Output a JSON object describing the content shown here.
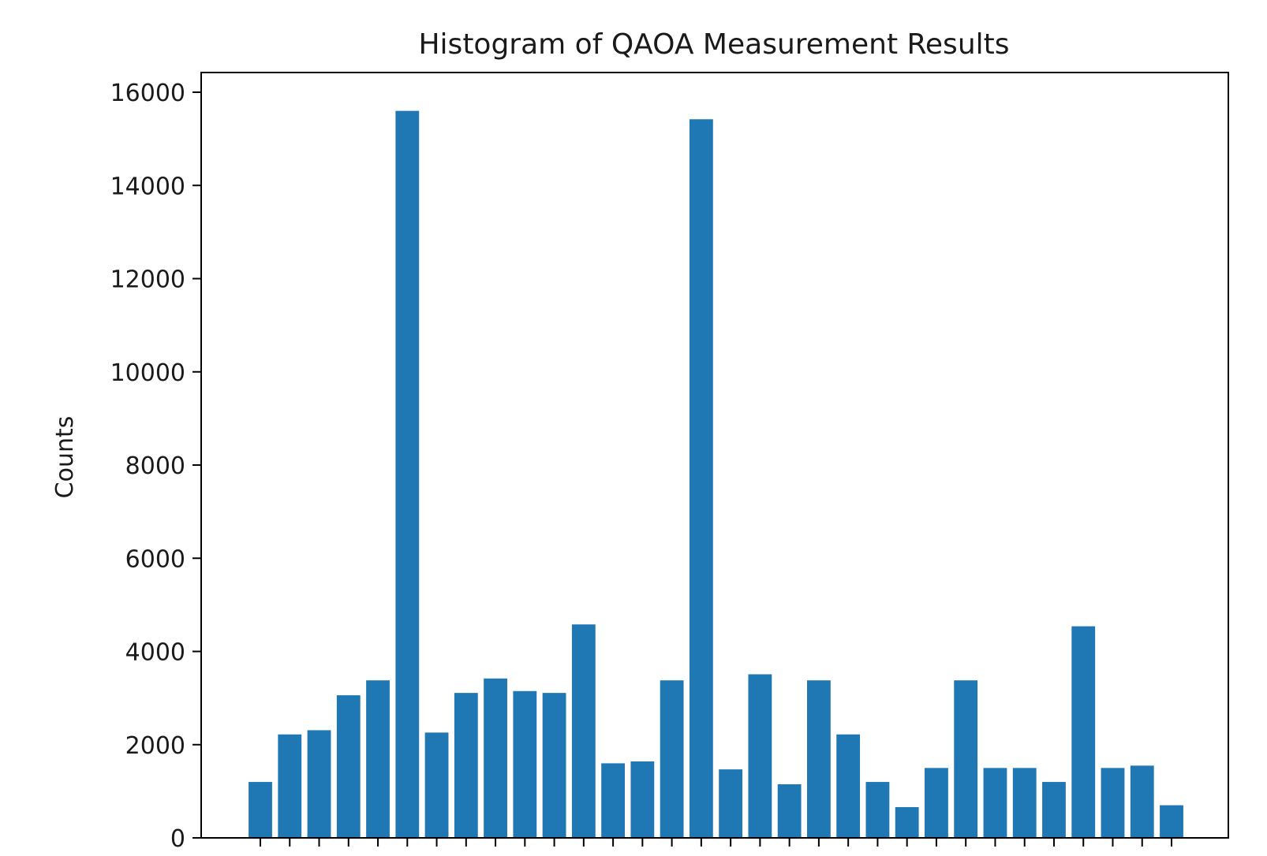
{
  "chart_data": {
    "type": "bar",
    "title": "Histogram of QAOA Measurement Results",
    "xlabel": "",
    "ylabel": "Counts",
    "ylim": [
      0,
      16400
    ],
    "yticks": [
      0,
      2000,
      4000,
      6000,
      8000,
      10000,
      12000,
      14000,
      16000
    ],
    "bar_color": "#1f77b4",
    "values": [
      1200,
      2220,
      2310,
      3060,
      3380,
      15600,
      2260,
      3110,
      3420,
      3150,
      3110,
      4580,
      1600,
      1640,
      3380,
      15420,
      1470,
      3510,
      1150,
      3380,
      2220,
      1200,
      660,
      1500,
      3380,
      1500,
      1500,
      1200,
      4540,
      1500,
      1550,
      700
    ],
    "grid": false,
    "legend": "none"
  }
}
